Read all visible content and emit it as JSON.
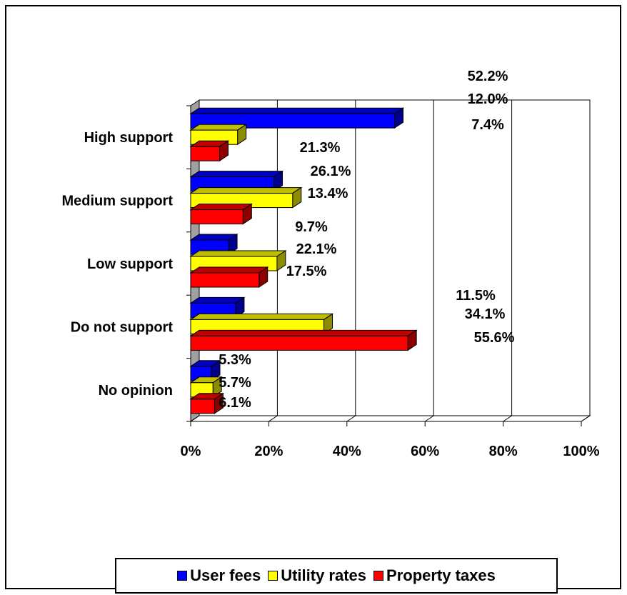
{
  "chart_data": {
    "type": "bar",
    "orientation": "horizontal",
    "categories": [
      "High support",
      "Medium support",
      "Low support",
      "Do not support",
      "No opinion"
    ],
    "series": [
      {
        "name": "User fees",
        "color": "#0000ff",
        "values": [
          52.2,
          21.3,
          9.7,
          11.5,
          5.3
        ],
        "labels": [
          "52.2%",
          "21.3%",
          "9.7%",
          "11.5%",
          "5.3%"
        ]
      },
      {
        "name": "Utility rates",
        "color": "#ffff00",
        "values": [
          12.0,
          26.1,
          22.1,
          34.1,
          5.7
        ],
        "labels": [
          "12.0%",
          "26.1%",
          "22.1%",
          "34.1%",
          "5.7%"
        ]
      },
      {
        "name": "Property taxes",
        "color": "#ff0000",
        "values": [
          7.4,
          13.4,
          17.5,
          55.6,
          6.1
        ],
        "labels": [
          "7.4%",
          "13.4%",
          "17.5%",
          "55.6%",
          "6.1%"
        ]
      }
    ],
    "x_ticks": [
      "0%",
      "20%",
      "40%",
      "60%",
      "80%",
      "100%"
    ],
    "xlim": [
      0,
      100
    ],
    "grid": true,
    "legend_position": "bottom",
    "three_d": true
  }
}
